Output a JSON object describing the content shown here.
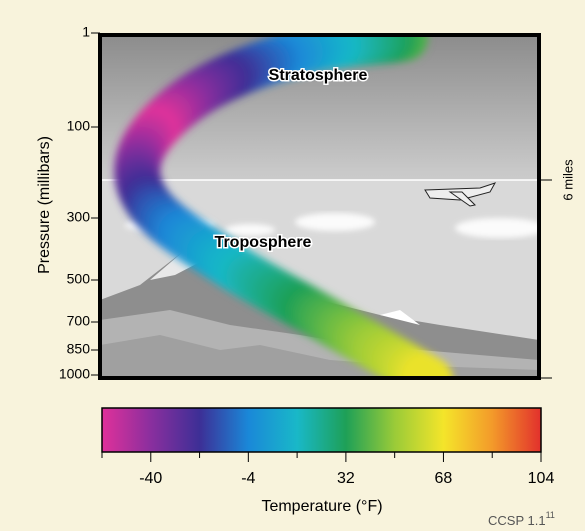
{
  "labels": {
    "stratosphere": "Stratosphere",
    "troposphere": "Troposphere",
    "y_axis": "Pressure (millibars)",
    "right_tick": "6 miles",
    "credit": "CCSP 1.1",
    "credit_sup": "11"
  },
  "pressure_ticks": [
    "1",
    "100",
    "300",
    "500",
    "700",
    "850",
    "1000"
  ],
  "chart_data": {
    "type": "colorbar",
    "xlabel": "Temperature (°F)",
    "xlim": [
      -58,
      104
    ],
    "xticks": [
      -40,
      -4,
      32,
      68,
      104
    ],
    "minor_xticks": [
      -58,
      -22,
      14,
      50,
      86
    ],
    "colormap": [
      "#e0309a",
      "#8a2f9e",
      "#3d2f96",
      "#1a88d8",
      "#19b8c8",
      "#1ea057",
      "#9acb38",
      "#f4e52a",
      "#f39a2a",
      "#e2302c"
    ]
  }
}
